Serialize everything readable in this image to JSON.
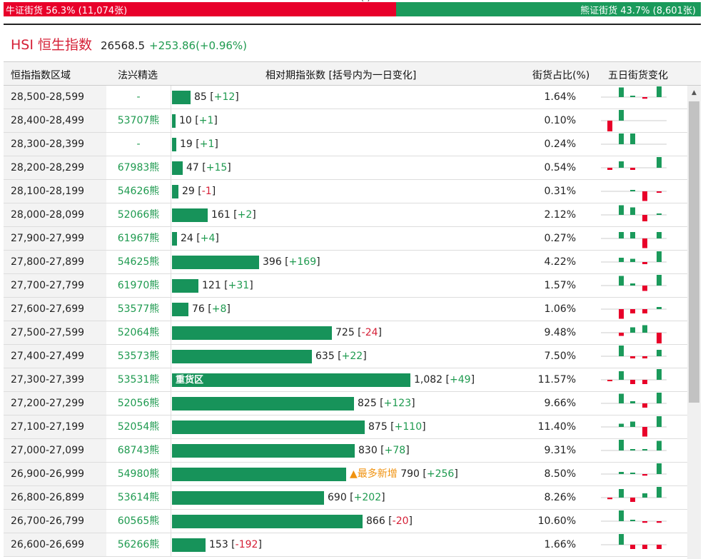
{
  "ratio": {
    "bull_label": "牛证街货 56.3% (11,074张)",
    "bear_label": "熊证街货 43.7% (8,601张)",
    "bull_fraction": 0.563,
    "top_cut_text": "(               )",
    "colors": {
      "bull": "#e8002a",
      "bear": "#1b9a5b"
    }
  },
  "index": {
    "name": "HSI 恒生指数",
    "value": "26568.5",
    "change": "+253.86(+0.96%)"
  },
  "table": {
    "headers": {
      "range": "恒指指数区域",
      "pick": "法兴精选",
      "relative": "相对期指张数 [括号内为一日变化]",
      "pct": "街货占比(%)",
      "five_day": "五日街货变化"
    },
    "max_count": 1082,
    "rows": [
      {
        "range": "28,500-28,599",
        "pick": "-",
        "count": 85,
        "count_text": "85",
        "delta": "+12",
        "pct": "1.64%",
        "tag": "",
        "spark": [
          0,
          0.9,
          0.1,
          -0.15,
          1
        ]
      },
      {
        "range": "28,400-28,499",
        "pick": "53707熊",
        "count": 10,
        "count_text": "10",
        "delta": "+1",
        "pct": "0.10%",
        "tag": "",
        "spark": [
          -1,
          1,
          0,
          0,
          0
        ]
      },
      {
        "range": "28,300-28,399",
        "pick": "-",
        "count": 19,
        "count_text": "19",
        "delta": "+1",
        "pct": "0.24%",
        "tag": "",
        "spark": [
          0,
          1,
          1,
          0,
          0
        ]
      },
      {
        "range": "28,200-28,299",
        "pick": "67983熊",
        "count": 47,
        "count_text": "47",
        "delta": "+15",
        "pct": "0.54%",
        "tag": "",
        "spark": [
          -0.2,
          0.6,
          -0.2,
          0,
          1
        ]
      },
      {
        "range": "28,100-28,199",
        "pick": "54626熊",
        "count": 29,
        "count_text": "29",
        "delta": "-1",
        "pct": "0.31%",
        "tag": "",
        "spark": [
          0,
          0,
          0.1,
          -0.9,
          -0.1
        ]
      },
      {
        "range": "28,000-28,099",
        "pick": "52066熊",
        "count": 161,
        "count_text": "161",
        "delta": "+2",
        "pct": "2.12%",
        "tag": "",
        "spark": [
          0,
          0.9,
          0.7,
          -0.6,
          0.1
        ]
      },
      {
        "range": "27,900-27,999",
        "pick": "61967熊",
        "count": 24,
        "count_text": "24",
        "delta": "+4",
        "pct": "0.27%",
        "tag": "",
        "spark": [
          0,
          0.6,
          0.6,
          -0.9,
          0.6
        ]
      },
      {
        "range": "27,800-27,899",
        "pick": "54625熊",
        "count": 396,
        "count_text": "396",
        "delta": "+169",
        "pct": "4.22%",
        "tag": "",
        "spark": [
          0,
          0.4,
          0.3,
          -0.2,
          1
        ]
      },
      {
        "range": "27,700-27,799",
        "pick": "61970熊",
        "count": 121,
        "count_text": "121",
        "delta": "+31",
        "pct": "1.57%",
        "tag": "",
        "spark": [
          0,
          0.9,
          0.2,
          -0.5,
          1
        ]
      },
      {
        "range": "27,600-27,699",
        "pick": "53577熊",
        "count": 76,
        "count_text": "76",
        "delta": "+8",
        "pct": "1.06%",
        "tag": "",
        "spark": [
          0,
          -0.9,
          -0.4,
          -0.4,
          0.2
        ]
      },
      {
        "range": "27,500-27,599",
        "pick": "52064熊",
        "count": 725,
        "count_text": "725",
        "delta": "-24",
        "pct": "9.48%",
        "tag": "",
        "spark": [
          0,
          -0.3,
          0.5,
          0.7,
          -1
        ]
      },
      {
        "range": "27,400-27,499",
        "pick": "53573熊",
        "count": 635,
        "count_text": "635",
        "delta": "+22",
        "pct": "7.50%",
        "tag": "",
        "spark": [
          0,
          1,
          -0.2,
          -0.2,
          0.6
        ]
      },
      {
        "range": "27,300-27,399",
        "pick": "53531熊",
        "count": 1082,
        "count_text": "1,082",
        "delta": "+49",
        "pct": "11.57%",
        "tag": "heavy",
        "tag_label": "重货区",
        "spark": [
          -0.1,
          0.8,
          -0.4,
          -0.4,
          1
        ]
      },
      {
        "range": "27,200-27,299",
        "pick": "52056熊",
        "count": 825,
        "count_text": "825",
        "delta": "+123",
        "pct": "9.66%",
        "tag": "",
        "spark": [
          0,
          0.9,
          0.2,
          -0.4,
          1
        ]
      },
      {
        "range": "27,100-27,199",
        "pick": "52054熊",
        "count": 875,
        "count_text": "875",
        "delta": "+110",
        "pct": "11.40%",
        "tag": "",
        "spark": [
          0,
          0.3,
          0.5,
          -0.9,
          1
        ]
      },
      {
        "range": "27,000-27,099",
        "pick": "68743熊",
        "count": 830,
        "count_text": "830",
        "delta": "+78",
        "pct": "9.31%",
        "tag": "",
        "spark": [
          0,
          1,
          0.1,
          0.1,
          0.9
        ]
      },
      {
        "range": "26,900-26,999",
        "pick": "54980熊",
        "count": 790,
        "count_text": "790",
        "delta": "+256",
        "pct": "8.50%",
        "tag": "most",
        "tag_label": "▲最多新增",
        "spark": [
          0,
          0.2,
          0.1,
          -0.15,
          1
        ]
      },
      {
        "range": "26,800-26,899",
        "pick": "53614熊",
        "count": 690,
        "count_text": "690",
        "delta": "+202",
        "pct": "8.26%",
        "tag": "",
        "spark": [
          -0.15,
          0.8,
          -0.4,
          0.4,
          1
        ]
      },
      {
        "range": "26,700-26,799",
        "pick": "60565熊",
        "count": 866,
        "count_text": "866",
        "delta": "-20",
        "pct": "10.60%",
        "tag": "",
        "spark": [
          0,
          1,
          0.1,
          -0.15,
          -0.15
        ]
      },
      {
        "range": "26,600-26,699",
        "pick": "56266熊",
        "count": 153,
        "count_text": "153",
        "delta": "-192",
        "pct": "1.66%",
        "tag": "",
        "spark": [
          0,
          1,
          -0.4,
          -0.4,
          -0.4
        ]
      }
    ]
  },
  "scrollbar": {
    "up_icon": "▲"
  }
}
